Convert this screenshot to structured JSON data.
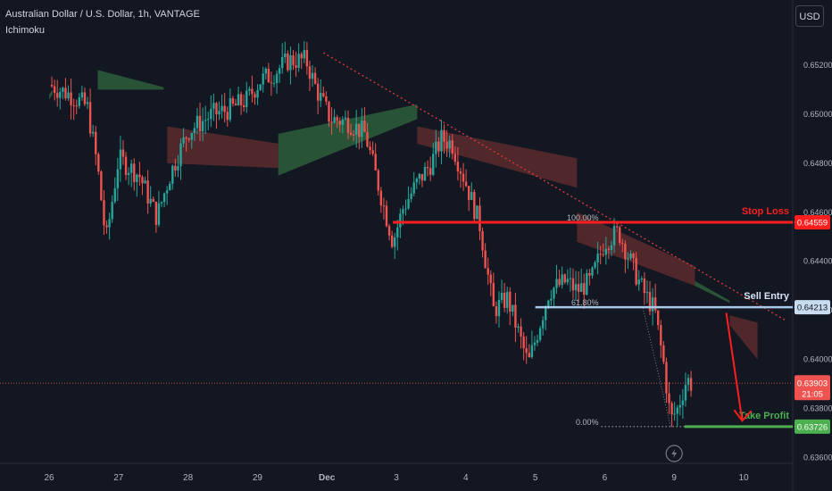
{
  "header": {
    "title": "Australian Dollar / U.S. Dollar, 1h, VANTAGE",
    "indicator": "Ichimoku",
    "currency_button": "USD"
  },
  "colors": {
    "background": "#131722",
    "bull": "#26a69a",
    "bear": "#ef5350",
    "stop_loss": "#ff1e1e",
    "entry": "#a8c8e8",
    "take_profit": "#4caf50",
    "trendline": "#e03c3c"
  },
  "chart_data": {
    "type": "candlestick",
    "symbol": "AUDUSD",
    "timeframe": "1h",
    "y_axis": {
      "range": [
        0.6358,
        0.6532
      ],
      "ticks": [
        0.652,
        0.65,
        0.648,
        0.646,
        0.644,
        0.642,
        0.64,
        0.638,
        0.636
      ],
      "tick_labels": [
        "0.65200",
        "0.65000",
        "0.64800",
        "0.64600",
        "0.64400",
        "0.64200",
        "0.64000",
        "0.63800",
        "0.63600"
      ]
    },
    "x_axis": {
      "labels": [
        "26",
        "27",
        "28",
        "29",
        "Dec",
        "3",
        "4",
        "5",
        "6",
        "9",
        "10"
      ],
      "session_index": [
        0,
        1,
        2,
        3,
        4,
        5,
        6,
        7,
        8,
        9,
        10
      ]
    },
    "price_path": [
      [
        0.0,
        0.6512
      ],
      [
        0.3,
        0.6508
      ],
      [
        0.55,
        0.6503
      ],
      [
        0.7,
        0.6478
      ],
      [
        0.82,
        0.6448
      ],
      [
        1.0,
        0.6482
      ],
      [
        1.3,
        0.6475
      ],
      [
        1.55,
        0.6458
      ],
      [
        1.75,
        0.6476
      ],
      [
        2.0,
        0.6493
      ],
      [
        2.35,
        0.65
      ],
      [
        2.6,
        0.6502
      ],
      [
        2.85,
        0.6506
      ],
      [
        3.05,
        0.6514
      ],
      [
        3.2,
        0.6516
      ],
      [
        3.45,
        0.6522
      ],
      [
        3.7,
        0.6522
      ],
      [
        3.85,
        0.651
      ],
      [
        4.05,
        0.6498
      ],
      [
        4.3,
        0.6497
      ],
      [
        4.55,
        0.6492
      ],
      [
        4.75,
        0.647
      ],
      [
        4.95,
        0.6448
      ],
      [
        5.1,
        0.6462
      ],
      [
        5.3,
        0.6472
      ],
      [
        5.5,
        0.648
      ],
      [
        5.65,
        0.649
      ],
      [
        5.8,
        0.6488
      ],
      [
        6.0,
        0.6472
      ],
      [
        6.2,
        0.6455
      ],
      [
        6.4,
        0.642
      ],
      [
        6.6,
        0.6425
      ],
      [
        6.9,
        0.6398
      ],
      [
        7.2,
        0.6428
      ],
      [
        7.45,
        0.6432
      ],
      [
        7.6,
        0.6428
      ],
      [
        7.8,
        0.6432
      ],
      [
        8.0,
        0.6448
      ],
      [
        8.2,
        0.6452
      ],
      [
        8.4,
        0.6438
      ],
      [
        8.55,
        0.6428
      ],
      [
        8.72,
        0.642
      ],
      [
        8.85,
        0.6398
      ],
      [
        8.95,
        0.6375
      ],
      [
        9.05,
        0.638
      ],
      [
        9.18,
        0.6392
      ],
      [
        9.25,
        0.639
      ]
    ],
    "ichimoku_cloud": [
      {
        "span": [
          0.0,
          0.05
        ],
        "color": "bull",
        "top": [
          0.6508,
          0.651
        ],
        "bottom": [
          0.6506,
          0.6508
        ]
      },
      {
        "span": [
          0.05,
          1.55
        ],
        "color": "bull",
        "top": [
          0.651,
          0.651
        ],
        "bottom": [
          0.651,
          0.651
        ]
      },
      {
        "span": [
          0.7,
          1.65
        ],
        "color": "bull",
        "top": [
          0.6518,
          0.6511
        ],
        "bottom": [
          0.651,
          0.651
        ]
      },
      {
        "span": [
          1.7,
          3.3
        ],
        "color": "bear",
        "top": [
          0.6495,
          0.6488
        ],
        "bottom": [
          0.648,
          0.6478
        ]
      },
      {
        "span": [
          3.3,
          5.3
        ],
        "color": "bull",
        "top": [
          0.6492,
          0.6504
        ],
        "bottom": [
          0.6475,
          0.6498
        ]
      },
      {
        "span": [
          5.3,
          7.6
        ],
        "color": "bear",
        "top": [
          0.6495,
          0.6482
        ],
        "bottom": [
          0.6488,
          0.647
        ]
      },
      {
        "span": [
          7.6,
          9.3
        ],
        "color": "bear",
        "top": [
          0.646,
          0.6438
        ],
        "bottom": [
          0.6448,
          0.643
        ]
      },
      {
        "span": [
          9.3,
          9.8
        ],
        "color": "bull",
        "top": [
          0.6432,
          0.6424
        ],
        "bottom": [
          0.643,
          0.6423
        ]
      },
      {
        "span": [
          9.8,
          10.2
        ],
        "color": "bear",
        "top": [
          0.6418,
          0.6415
        ],
        "bottom": [
          0.6414,
          0.64
        ]
      }
    ],
    "trendline": {
      "from": [
        3.95,
        0.6525
      ],
      "to": [
        10.6,
        0.6416
      ],
      "style": "dotted"
    },
    "fibonacci": {
      "levels": [
        {
          "ratio_label": "100.00%",
          "price": 0.64559
        },
        {
          "ratio_label": "61.80%",
          "price": 0.64213
        },
        {
          "ratio_label": "0.00%",
          "price": 0.63726
        }
      ],
      "start_index": 7.95,
      "end_index": 11.0
    },
    "stop_loss": {
      "label": "Stop Loss",
      "price": 0.64559,
      "price_label": "0.64559",
      "start_index": 4.95
    },
    "entry": {
      "label": "Sell Entry",
      "price": 0.64213,
      "price_label": "0.64213",
      "start_index": 7.0
    },
    "take_profit": {
      "label": "Take Profit",
      "price": 0.63726,
      "price_label": "0.63726",
      "start_index": 9.15
    },
    "current_price": {
      "price": 0.63903,
      "price_label": "0.63903",
      "countdown": "21:05"
    },
    "projection_arrow": {
      "from": [
        9.75,
        0.6419
      ],
      "to": [
        9.98,
        0.6375
      ]
    },
    "grid": false,
    "legend": "none"
  }
}
